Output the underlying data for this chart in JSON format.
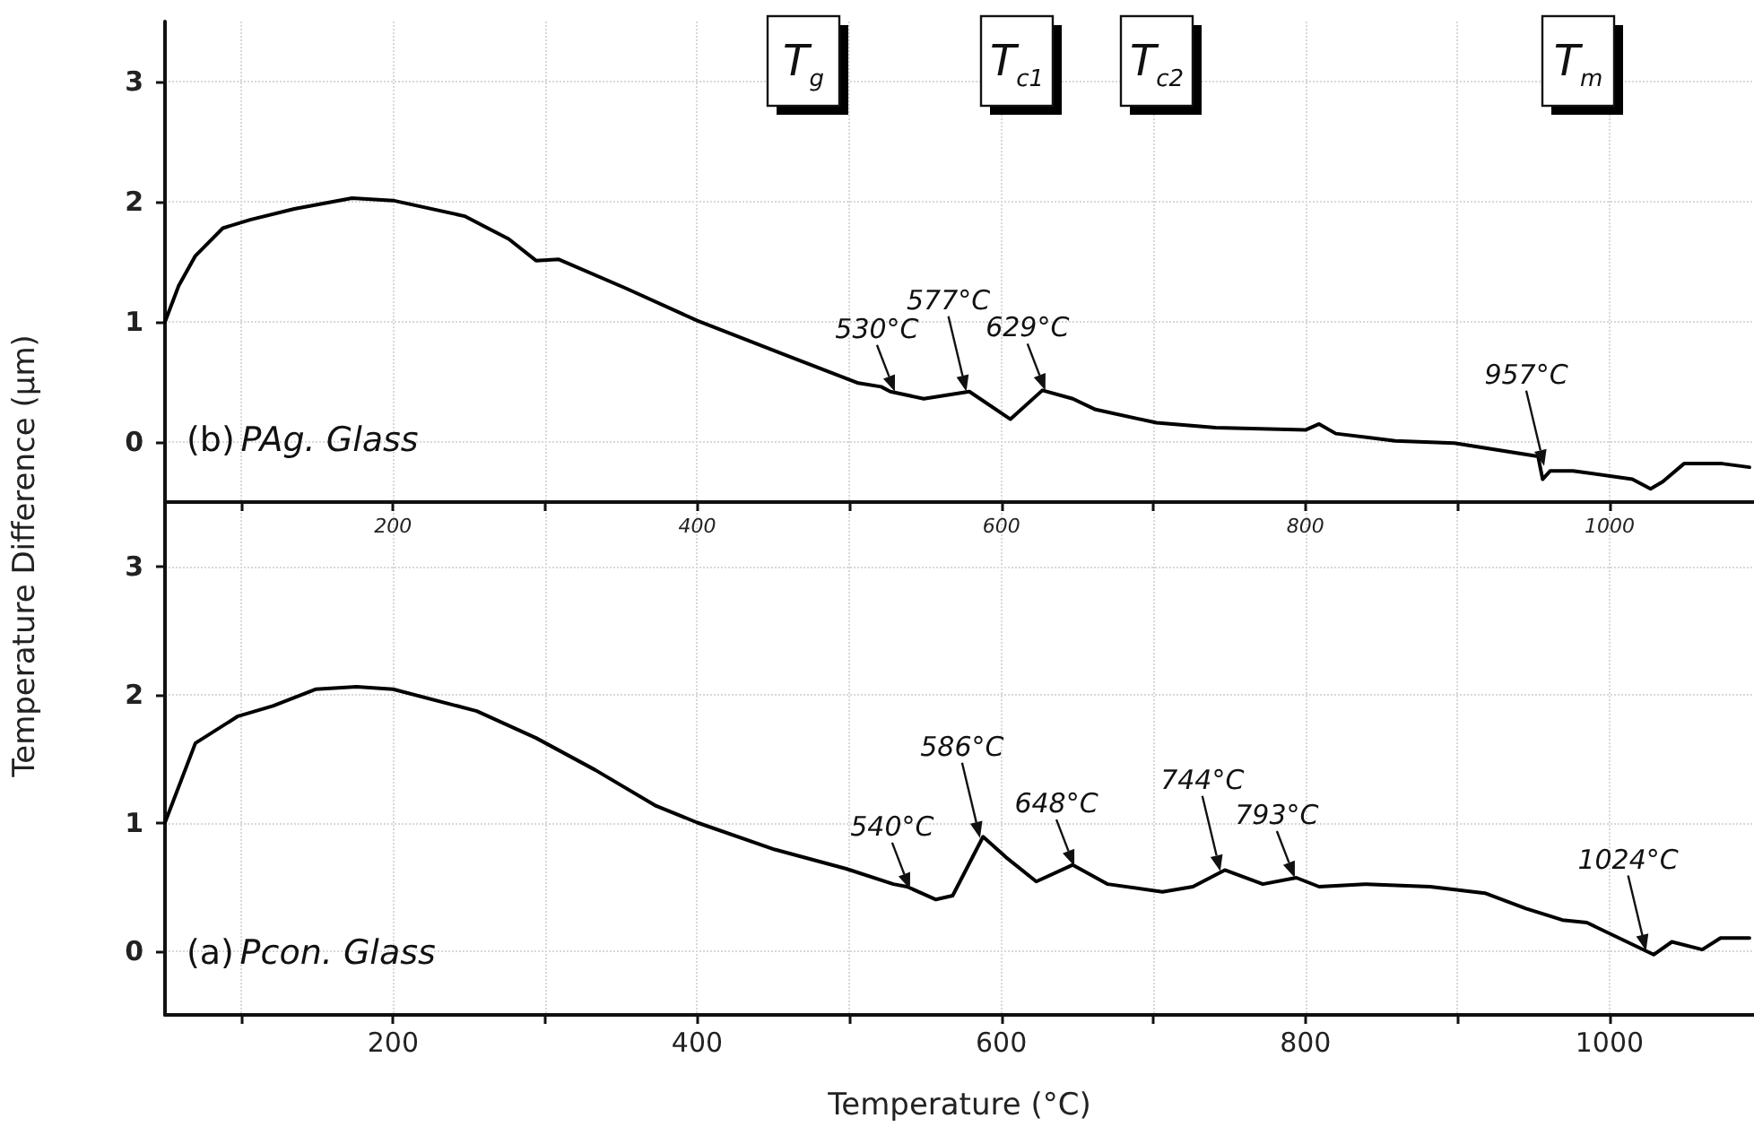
{
  "chart_data": [
    {
      "type": "line",
      "title": "(b) PAg. Glass",
      "ylabel": "Temperature Difference (µm)",
      "color": "#000000",
      "grid": true,
      "marker": "none",
      "x": [
        50,
        59,
        70,
        88,
        106,
        135,
        173,
        200,
        247,
        276,
        294,
        309,
        353,
        400,
        459,
        506,
        521,
        527,
        549,
        579,
        606,
        627,
        647,
        662,
        702,
        741,
        800,
        809,
        820,
        859,
        898,
        953,
        956,
        961,
        976,
        1015,
        1027,
        1035,
        1049,
        1074,
        1092
      ],
      "values": [
        1.0,
        1.3,
        1.55,
        1.78,
        1.85,
        1.94,
        2.03,
        2.01,
        1.88,
        1.69,
        1.51,
        1.52,
        1.28,
        1.01,
        0.72,
        0.49,
        0.46,
        0.42,
        0.36,
        0.42,
        0.19,
        0.43,
        0.36,
        0.27,
        0.16,
        0.12,
        0.1,
        0.15,
        0.07,
        0.01,
        -0.01,
        -0.12,
        -0.31,
        -0.24,
        -0.24,
        -0.31,
        -0.39,
        -0.33,
        -0.18,
        -0.18,
        -0.21
      ],
      "xlim": [
        50,
        1095
      ],
      "ylim": [
        -0.5,
        3.5
      ],
      "xticks": [
        {
          "value": 100,
          "label": null
        },
        200,
        {
          "value": 300,
          "label": null
        },
        400,
        {
          "value": 500,
          "label": null
        },
        600,
        {
          "value": 700,
          "label": null
        },
        800,
        {
          "value": 900,
          "label": null
        },
        1000
      ],
      "yticks": [
        0,
        1,
        2,
        3
      ],
      "annotations": [
        "T$_{g}$",
        "T$_{c1}$",
        "T$_{c2}$",
        "T$_{m}$",
        {
          "text": "530°C",
          "x": 530,
          "y": 0.42
        },
        {
          "text": "577°C",
          "x": 577,
          "y": 0.42
        },
        {
          "text": "629°C",
          "x": 629,
          "y": 0.43
        },
        {
          "text": "957°C",
          "x": 957,
          "y": -0.2
        }
      ]
    },
    {
      "type": "line",
      "title": "(a) Pcon. Glass",
      "xlabel": "Temperature (°C)",
      "color": "#000000",
      "grid": true,
      "marker": "none",
      "x": [
        50,
        70,
        98,
        121,
        149,
        176,
        200,
        255,
        294,
        333,
        373,
        400,
        451,
        498,
        529,
        538,
        557,
        568,
        588,
        603,
        623,
        647,
        670,
        706,
        726,
        747,
        772,
        794,
        809,
        839,
        882,
        918,
        945,
        969,
        985,
        1029,
        1041,
        1061,
        1073,
        1092
      ],
      "values": [
        1.0,
        1.62,
        1.83,
        1.91,
        2.04,
        2.06,
        2.04,
        1.87,
        1.66,
        1.41,
        1.13,
        1.0,
        0.79,
        0.64,
        0.52,
        0.5,
        0.4,
        0.43,
        0.89,
        0.73,
        0.54,
        0.67,
        0.52,
        0.46,
        0.5,
        0.63,
        0.52,
        0.57,
        0.5,
        0.52,
        0.5,
        0.45,
        0.33,
        0.24,
        0.22,
        -0.03,
        0.07,
        0.01,
        0.1,
        0.1
      ],
      "xlim": [
        50,
        1095
      ],
      "ylim": [
        -0.5,
        3.5
      ],
      "xticks": [
        {
          "value": 100,
          "label": null
        },
        200,
        {
          "value": 300,
          "label": null
        },
        400,
        {
          "value": 500,
          "label": null
        },
        600,
        {
          "value": 700,
          "label": null
        },
        800,
        {
          "value": 900,
          "label": null
        },
        1000
      ],
      "yticks": [
        0,
        1,
        2,
        3
      ],
      "annotations": [
        {
          "text": "540°C",
          "x": 540,
          "y": 0.48
        },
        {
          "text": "586°C",
          "x": 586,
          "y": 0.88
        },
        {
          "text": "648°C",
          "x": 648,
          "y": 0.66
        },
        {
          "text": "744°C",
          "x": 744,
          "y": 0.62
        },
        {
          "text": "793°C",
          "x": 793,
          "y": 0.57
        },
        {
          "text": "1024°C",
          "x": 1024,
          "y": 0.0
        }
      ]
    }
  ]
}
